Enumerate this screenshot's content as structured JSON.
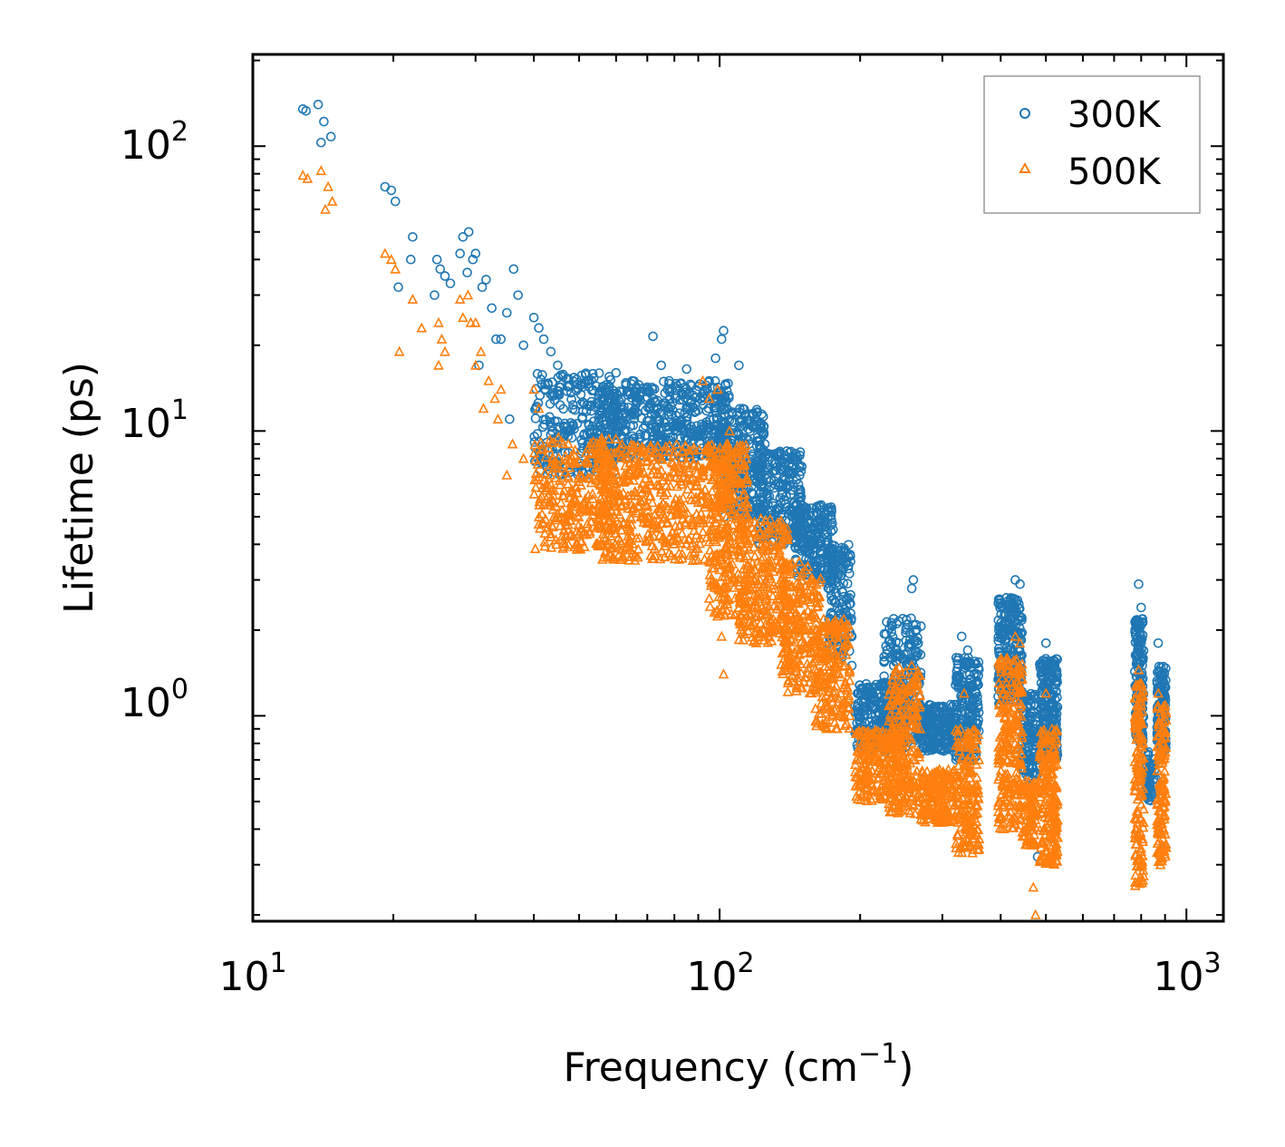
{
  "chart_data": {
    "type": "scatter",
    "xscale": "log",
    "yscale": "log",
    "xlabel": "Frequency (cm",
    "xlabel_sup": "−1",
    "xlabel_end": ")",
    "ylabel": "Lifetime (ps)",
    "xlim": [
      10,
      1200
    ],
    "ylim": [
      0.19,
      210
    ],
    "x_ticks": [
      {
        "base": "10",
        "exp": "1",
        "value": 10
      },
      {
        "base": "10",
        "exp": "2",
        "value": 100
      },
      {
        "base": "10",
        "exp": "3",
        "value": 1000
      }
    ],
    "y_ticks": [
      {
        "base": "10",
        "exp": "0",
        "value": 1
      },
      {
        "base": "10",
        "exp": "1",
        "value": 10
      },
      {
        "base": "10",
        "exp": "2",
        "value": 100
      }
    ],
    "legend_position": "top-right",
    "series": [
      {
        "name": "300K",
        "marker": "circle",
        "color": "#1f77b4",
        "points": [
          [
            12.8,
            135
          ],
          [
            13.0,
            133
          ],
          [
            13.8,
            140
          ],
          [
            14.2,
            122
          ],
          [
            14.0,
            103
          ],
          [
            14.7,
            108
          ],
          [
            19.2,
            72
          ],
          [
            19.8,
            70
          ],
          [
            20.2,
            64
          ],
          [
            22.0,
            48
          ],
          [
            24.8,
            40
          ],
          [
            25.2,
            37
          ],
          [
            25.8,
            35
          ],
          [
            26.5,
            33
          ],
          [
            27.8,
            42
          ],
          [
            28.2,
            48
          ],
          [
            29.0,
            50
          ],
          [
            29.6,
            40
          ],
          [
            30.0,
            42
          ],
          [
            31.0,
            32
          ],
          [
            31.6,
            34
          ],
          [
            32.5,
            27
          ],
          [
            35.0,
            26
          ],
          [
            36.2,
            37
          ],
          [
            37.0,
            30
          ],
          [
            34.0,
            21
          ],
          [
            38.0,
            20
          ],
          [
            20.5,
            32
          ],
          [
            21.8,
            40
          ],
          [
            24.5,
            30
          ],
          [
            28.8,
            36
          ],
          [
            30.5,
            17
          ],
          [
            33.2,
            21
          ],
          [
            35.5,
            11
          ],
          [
            40.0,
            25
          ],
          [
            41.0,
            23
          ],
          [
            42.0,
            21
          ],
          [
            43.5,
            19
          ],
          [
            45.0,
            17
          ],
          [
            60.0,
            16
          ],
          [
            65.0,
            15
          ],
          [
            72.0,
            21.5
          ],
          [
            75.0,
            17
          ],
          [
            78.0,
            15
          ],
          [
            85.0,
            16.5
          ],
          [
            95.0,
            15
          ],
          [
            98.0,
            18
          ],
          [
            101.0,
            21
          ],
          [
            102.0,
            22.5
          ],
          [
            110.0,
            17
          ],
          [
            120.0,
            10.5
          ],
          [
            125.0,
            9
          ],
          [
            140.0,
            8
          ],
          [
            150.0,
            7.5
          ],
          [
            165.0,
            5.5
          ],
          [
            175.0,
            4.5
          ],
          [
            185.0,
            3.8
          ],
          [
            192.0,
            1.5
          ],
          [
            188.0,
            2.2
          ],
          [
            260.0,
            3.0
          ],
          [
            258.0,
            2.8
          ],
          [
            330.0,
            1.9
          ],
          [
            340.0,
            1.7
          ],
          [
            430.0,
            3.0
          ],
          [
            440.0,
            2.9
          ],
          [
            460.0,
            1.0
          ],
          [
            480.0,
            0.32
          ],
          [
            500.0,
            1.8
          ],
          [
            790.0,
            2.9
          ],
          [
            800.0,
            2.4
          ],
          [
            870.0,
            1.8
          ],
          [
            860.0,
            0.6
          ],
          [
            470.0,
            0.45
          ]
        ],
        "clusters": [
          {
            "x_range": [
              40,
              60
            ],
            "y_range": [
              7,
              16
            ],
            "n": 260
          },
          {
            "x_range": [
              55,
              105
            ],
            "y_range": [
              8,
              15
            ],
            "n": 520
          },
          {
            "x_range": [
              100,
              125
            ],
            "y_range": [
              5,
              12
            ],
            "n": 260
          },
          {
            "x_range": [
              120,
              150
            ],
            "y_range": [
              4,
              8.5
            ],
            "n": 240
          },
          {
            "x_range": [
              145,
              175
            ],
            "y_range": [
              3,
              5.5
            ],
            "n": 200
          },
          {
            "x_range": [
              170,
              192
            ],
            "y_range": [
              1.6,
              4
            ],
            "n": 160
          },
          {
            "x_range": [
              195,
              250
            ],
            "y_range": [
              0.75,
              1.3
            ],
            "n": 260
          },
          {
            "x_range": [
              225,
              270
            ],
            "y_range": [
              0.8,
              2.2
            ],
            "n": 220
          },
          {
            "x_range": [
              270,
              320
            ],
            "y_range": [
              0.75,
              1.1
            ],
            "n": 200
          },
          {
            "x_range": [
              320,
              360
            ],
            "y_range": [
              0.7,
              1.6
            ],
            "n": 180
          },
          {
            "x_range": [
              395,
              445
            ],
            "y_range": [
              1.1,
              2.6
            ],
            "n": 240
          },
          {
            "x_range": [
              445,
              480
            ],
            "y_range": [
              0.6,
              1.2
            ],
            "n": 120
          },
          {
            "x_range": [
              485,
              530
            ],
            "y_range": [
              0.7,
              1.6
            ],
            "n": 200
          },
          {
            "x_range": [
              775,
              810
            ],
            "y_range": [
              0.8,
              2.2
            ],
            "n": 160
          },
          {
            "x_range": [
              815,
              855
            ],
            "y_range": [
              0.5,
              0.75
            ],
            "n": 60
          },
          {
            "x_range": [
              865,
              905
            ],
            "y_range": [
              0.75,
              1.5
            ],
            "n": 140
          }
        ]
      },
      {
        "name": "500K",
        "marker": "triangle",
        "color": "#ff7f0e",
        "points": [
          [
            12.8,
            79
          ],
          [
            13.1,
            77
          ],
          [
            14.0,
            82
          ],
          [
            14.5,
            72
          ],
          [
            14.3,
            60
          ],
          [
            14.8,
            64
          ],
          [
            19.2,
            42
          ],
          [
            19.8,
            40
          ],
          [
            20.2,
            37
          ],
          [
            20.6,
            19
          ],
          [
            22.0,
            29
          ],
          [
            23.0,
            23
          ],
          [
            25.0,
            24
          ],
          [
            25.4,
            21
          ],
          [
            25.8,
            19
          ],
          [
            25.0,
            17
          ],
          [
            27.8,
            29
          ],
          [
            28.2,
            25
          ],
          [
            28.9,
            30
          ],
          [
            29.3,
            24
          ],
          [
            30.0,
            24
          ],
          [
            30.8,
            19
          ],
          [
            30.0,
            17
          ],
          [
            32.0,
            15
          ],
          [
            33.0,
            13
          ],
          [
            31.2,
            12
          ],
          [
            33.5,
            11
          ],
          [
            34.0,
            14
          ],
          [
            36.0,
            9
          ],
          [
            35.0,
            7
          ],
          [
            38.0,
            8
          ],
          [
            40.0,
            14
          ],
          [
            41.0,
            12
          ],
          [
            92.0,
            15
          ],
          [
            95.0,
            13
          ],
          [
            99.0,
            14
          ],
          [
            105.0,
            10
          ],
          [
            101.0,
            1.9
          ],
          [
            102.0,
            1.4
          ],
          [
            190.0,
            1.0
          ],
          [
            200.0,
            0.7
          ],
          [
            258.0,
            1.5
          ],
          [
            334.0,
            1.2
          ],
          [
            348.0,
            0.33
          ],
          [
            430.0,
            1.9
          ],
          [
            440.0,
            1.8
          ],
          [
            470.0,
            0.25
          ],
          [
            475.0,
            0.2
          ],
          [
            500.0,
            1.2
          ],
          [
            510.0,
            0.35
          ],
          [
            790.0,
            1.45
          ],
          [
            800.0,
            1.3
          ],
          [
            870.0,
            1.2
          ],
          [
            880.0,
            0.3
          ]
        ],
        "clusters": [
          {
            "x_range": [
              40,
              60
            ],
            "y_range": [
              3.8,
              9.5
            ],
            "n": 300
          },
          {
            "x_range": [
              55,
              105
            ],
            "y_range": [
              3.5,
              9
            ],
            "n": 560
          },
          {
            "x_range": [
              95,
              115
            ],
            "y_range": [
              2.2,
              9
            ],
            "n": 260
          },
          {
            "x_range": [
              110,
              140
            ],
            "y_range": [
              1.8,
              5
            ],
            "n": 280
          },
          {
            "x_range": [
              135,
              165
            ],
            "y_range": [
              1.2,
              3.5
            ],
            "n": 240
          },
          {
            "x_range": [
              160,
              190
            ],
            "y_range": [
              0.9,
              2.2
            ],
            "n": 200
          },
          {
            "x_range": [
              195,
              250
            ],
            "y_range": [
              0.5,
              0.9
            ],
            "n": 240
          },
          {
            "x_range": [
              230,
              270
            ],
            "y_range": [
              0.45,
              1.5
            ],
            "n": 220
          },
          {
            "x_range": [
              270,
              320
            ],
            "y_range": [
              0.42,
              0.65
            ],
            "n": 180
          },
          {
            "x_range": [
              320,
              360
            ],
            "y_range": [
              0.33,
              0.9
            ],
            "n": 180
          },
          {
            "x_range": [
              395,
              445
            ],
            "y_range": [
              0.4,
              1.6
            ],
            "n": 240
          },
          {
            "x_range": [
              445,
              480
            ],
            "y_range": [
              0.35,
              0.6
            ],
            "n": 100
          },
          {
            "x_range": [
              485,
              530
            ],
            "y_range": [
              0.3,
              0.9
            ],
            "n": 200
          },
          {
            "x_range": [
              775,
              810
            ],
            "y_range": [
              0.25,
              1.3
            ],
            "n": 160
          },
          {
            "x_range": [
              865,
              905
            ],
            "y_range": [
              0.3,
              1.1
            ],
            "n": 140
          }
        ]
      }
    ]
  }
}
